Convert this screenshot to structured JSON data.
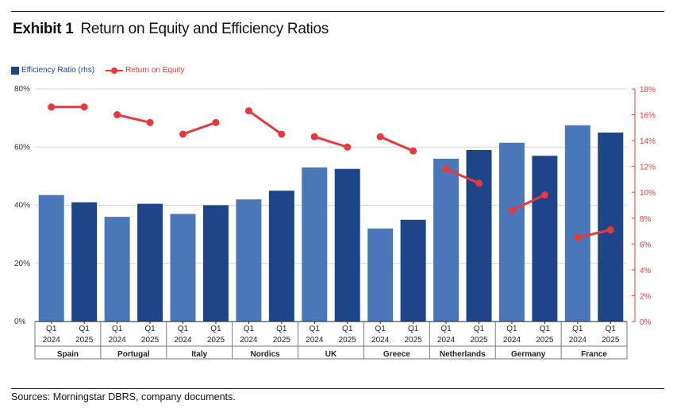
{
  "header": {
    "exhibit_label": "Exhibit 1",
    "title": "Return on Equity and Efficiency Ratios"
  },
  "legend": {
    "bar_label": "Efficiency Ratio (rhs)",
    "line_label": "Return on Equity"
  },
  "source": "Sources: Morningstar DBRS, company documents.",
  "colors": {
    "bar_2024": "#4a77b9",
    "bar_2025": "#1e4489",
    "line": "#e8383b",
    "grid": "#d4d4d4"
  },
  "chart_data": {
    "type": "bar",
    "title": "Return on Equity and Efficiency Ratios",
    "categories": [
      "Spain",
      "Portugal",
      "Italy",
      "Nordics",
      "UK",
      "Greece",
      "Netherlands",
      "Germany",
      "France"
    ],
    "periods": [
      "Q1\n2024",
      "Q1\n2025"
    ],
    "left_axis": {
      "ticks": [
        "0%",
        "20%",
        "40%",
        "60%",
        "80%"
      ],
      "ylim": [
        0,
        80
      ]
    },
    "right_axis": {
      "ticks": [
        "0%",
        "2%",
        "4%",
        "6%",
        "8%",
        "10%",
        "12%",
        "14%",
        "16%",
        "18%"
      ],
      "ylim": [
        0,
        18
      ]
    },
    "grid": true,
    "legend_position": "top-left",
    "series": [
      {
        "name": "Efficiency Ratio (rhs)",
        "kind": "bar",
        "axis": "left",
        "values_2024": [
          43.5,
          36,
          37,
          42,
          53,
          32,
          56,
          61.5,
          67.5
        ],
        "values_2025": [
          41,
          40.5,
          40,
          45,
          52.5,
          35,
          59,
          57,
          65
        ]
      },
      {
        "name": "Return on Equity",
        "kind": "line",
        "axis": "right",
        "values_2024": [
          16.6,
          16.0,
          14.5,
          16.3,
          14.3,
          14.3,
          11.8,
          8.6,
          6.5
        ],
        "values_2025": [
          16.6,
          15.4,
          15.4,
          14.5,
          13.5,
          13.2,
          10.7,
          9.8,
          7.1
        ]
      }
    ]
  }
}
